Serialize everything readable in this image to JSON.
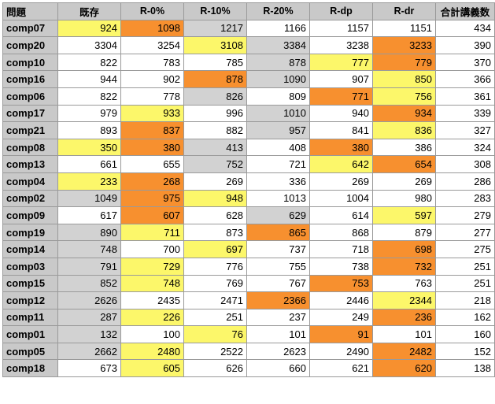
{
  "table": {
    "headers": [
      "問題",
      "既存",
      "R-0%",
      "R-10%",
      "R-20%",
      "R-dp",
      "R-dr",
      "合計講義数"
    ],
    "rows": [
      {
        "label": "comp07",
        "values": [
          "924",
          "1098",
          "1217",
          "1166",
          "1157",
          "1151",
          "434"
        ],
        "colors": [
          "y",
          "o",
          "g",
          "w",
          "w",
          "w",
          "w"
        ]
      },
      {
        "label": "comp20",
        "values": [
          "3304",
          "3254",
          "3108",
          "3384",
          "3238",
          "3233",
          "390"
        ],
        "colors": [
          "w",
          "w",
          "y",
          "g",
          "w",
          "o",
          "w"
        ]
      },
      {
        "label": "comp10",
        "values": [
          "822",
          "783",
          "785",
          "878",
          "777",
          "779",
          "370"
        ],
        "colors": [
          "w",
          "w",
          "w",
          "g",
          "y",
          "o",
          "w"
        ]
      },
      {
        "label": "comp16",
        "values": [
          "944",
          "902",
          "878",
          "1090",
          "907",
          "850",
          "366"
        ],
        "colors": [
          "w",
          "w",
          "o",
          "g",
          "w",
          "y",
          "w"
        ]
      },
      {
        "label": "comp06",
        "values": [
          "822",
          "778",
          "826",
          "809",
          "771",
          "756",
          "361"
        ],
        "colors": [
          "w",
          "w",
          "g",
          "w",
          "o",
          "y",
          "w"
        ]
      },
      {
        "label": "comp17",
        "values": [
          "979",
          "933",
          "996",
          "1010",
          "940",
          "934",
          "339"
        ],
        "colors": [
          "w",
          "y",
          "w",
          "g",
          "w",
          "o",
          "w"
        ]
      },
      {
        "label": "comp21",
        "values": [
          "893",
          "837",
          "882",
          "957",
          "841",
          "836",
          "327"
        ],
        "colors": [
          "w",
          "o",
          "w",
          "g",
          "w",
          "y",
          "w"
        ]
      },
      {
        "label": "comp08",
        "values": [
          "350",
          "380",
          "413",
          "408",
          "380",
          "386",
          "324"
        ],
        "colors": [
          "y",
          "o",
          "g",
          "w",
          "o",
          "w",
          "w"
        ]
      },
      {
        "label": "comp13",
        "values": [
          "661",
          "655",
          "752",
          "721",
          "642",
          "654",
          "308"
        ],
        "colors": [
          "w",
          "w",
          "g",
          "w",
          "y",
          "o",
          "w"
        ]
      },
      {
        "label": "comp04",
        "values": [
          "233",
          "268",
          "269",
          "336",
          "269",
          "269",
          "286"
        ],
        "colors": [
          "y",
          "o",
          "w",
          "w",
          "w",
          "w",
          "w"
        ]
      },
      {
        "label": "comp02",
        "values": [
          "1049",
          "975",
          "948",
          "1013",
          "1004",
          "980",
          "283"
        ],
        "colors": [
          "g",
          "o",
          "y",
          "w",
          "w",
          "w",
          "w"
        ]
      },
      {
        "label": "comp09",
        "values": [
          "617",
          "607",
          "628",
          "629",
          "614",
          "597",
          "279"
        ],
        "colors": [
          "w",
          "o",
          "w",
          "g",
          "w",
          "y",
          "w"
        ]
      },
      {
        "label": "comp19",
        "values": [
          "890",
          "711",
          "873",
          "865",
          "868",
          "879",
          "277"
        ],
        "colors": [
          "g",
          "y",
          "w",
          "o",
          "w",
          "w",
          "w"
        ]
      },
      {
        "label": "comp14",
        "values": [
          "748",
          "700",
          "697",
          "737",
          "718",
          "698",
          "275"
        ],
        "colors": [
          "g",
          "w",
          "y",
          "w",
          "w",
          "o",
          "w"
        ]
      },
      {
        "label": "comp03",
        "values": [
          "791",
          "729",
          "776",
          "755",
          "738",
          "732",
          "251"
        ],
        "colors": [
          "g",
          "y",
          "w",
          "w",
          "w",
          "o",
          "w"
        ]
      },
      {
        "label": "comp15",
        "values": [
          "852",
          "748",
          "769",
          "767",
          "753",
          "763",
          "251"
        ],
        "colors": [
          "g",
          "y",
          "w",
          "w",
          "o",
          "w",
          "w"
        ]
      },
      {
        "label": "comp12",
        "values": [
          "2626",
          "2435",
          "2471",
          "2366",
          "2446",
          "2344",
          "218"
        ],
        "colors": [
          "g",
          "w",
          "w",
          "o",
          "w",
          "y",
          "w"
        ]
      },
      {
        "label": "comp11",
        "values": [
          "287",
          "226",
          "251",
          "237",
          "249",
          "236",
          "162"
        ],
        "colors": [
          "g",
          "y",
          "w",
          "w",
          "w",
          "o",
          "w"
        ]
      },
      {
        "label": "comp01",
        "values": [
          "132",
          "100",
          "76",
          "101",
          "91",
          "101",
          "160"
        ],
        "colors": [
          "g",
          "w",
          "y",
          "w",
          "o",
          "w",
          "w"
        ]
      },
      {
        "label": "comp05",
        "values": [
          "2662",
          "2480",
          "2522",
          "2623",
          "2490",
          "2482",
          "152"
        ],
        "colors": [
          "g",
          "y",
          "w",
          "w",
          "w",
          "o",
          "w"
        ]
      },
      {
        "label": "comp18",
        "values": [
          "673",
          "605",
          "626",
          "660",
          "621",
          "620",
          "138"
        ],
        "colors": [
          "w",
          "y",
          "w",
          "w",
          "w",
          "o",
          "w"
        ]
      }
    ]
  },
  "colors": {
    "w": "#ffffff",
    "y": "#fcf76a",
    "o": "#f7902f",
    "g": "#d2d2d2",
    "header": "#c9c9c9",
    "border": "#9a9a9a"
  }
}
